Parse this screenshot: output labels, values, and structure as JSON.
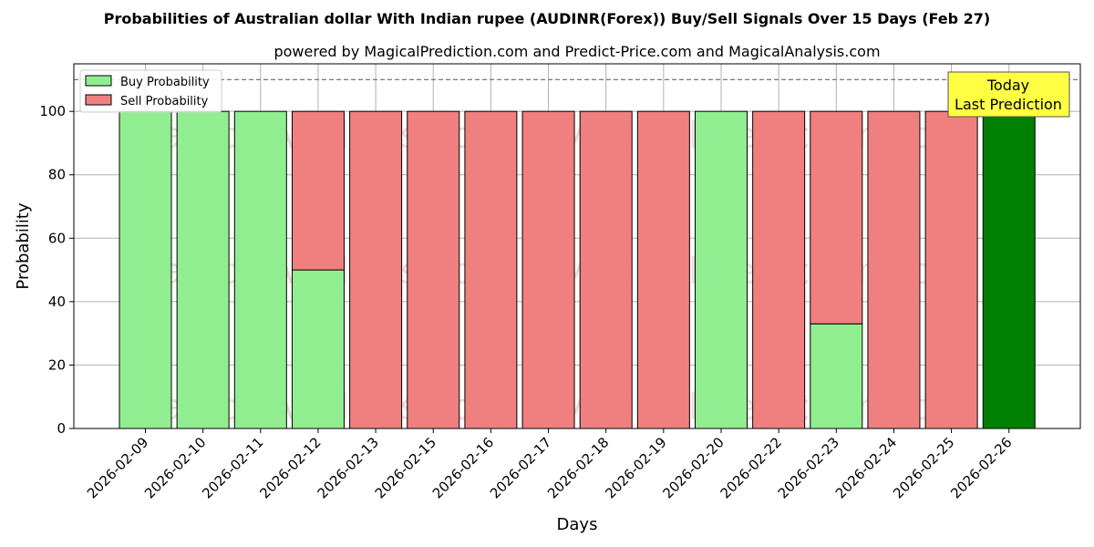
{
  "chart_data": {
    "type": "bar",
    "title": "Probabilities of Australian dollar With Indian rupee (AUDINR(Forex)) Buy/Sell Signals Over 15 Days (Feb 27)",
    "subtitle": "powered by MagicalPrediction.com and Predict-Price.com and MagicalAnalysis.com",
    "xlabel": "Days",
    "ylabel": "Probability",
    "ylim": [
      0,
      115
    ],
    "yticks": [
      0,
      20,
      40,
      60,
      80,
      100
    ],
    "reference_line": 110,
    "grid": true,
    "legend_position": "top-left",
    "categories": [
      "2026-02-09",
      "2026-02-10",
      "2026-02-11",
      "2026-02-12",
      "2026-02-13",
      "2026-02-15",
      "2026-02-16",
      "2026-02-17",
      "2026-02-18",
      "2026-02-19",
      "2026-02-20",
      "2026-02-22",
      "2026-02-23",
      "2026-02-24",
      "2026-02-25",
      "2026-02-26"
    ],
    "series": [
      {
        "name": "Buy Probability",
        "color": "#90ee90",
        "values": [
          100,
          100,
          100,
          50,
          0,
          0,
          0,
          0,
          0,
          0,
          100,
          0,
          33,
          0,
          0,
          100
        ]
      },
      {
        "name": "Sell Probability",
        "color": "#f08080",
        "values": [
          0,
          0,
          0,
          50,
          100,
          100,
          100,
          100,
          100,
          100,
          0,
          100,
          67,
          100,
          100,
          0
        ]
      }
    ],
    "today_bar": {
      "category": "2026-02-26",
      "color": "#008000"
    },
    "annotation": {
      "line1": "Today",
      "line2": "Last Prediction",
      "color": "#ffff44"
    },
    "watermarks": [
      "MagicalAnalysis.com",
      "MagicalPrediction.com"
    ]
  }
}
